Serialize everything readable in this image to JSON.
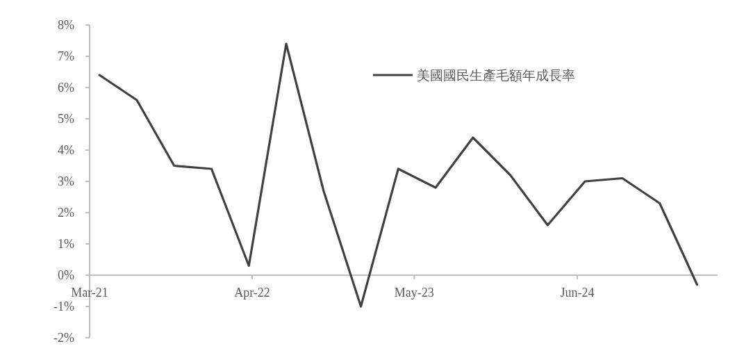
{
  "chart_data": {
    "type": "line",
    "x": [
      "2021-03-25",
      "2021-06-24",
      "2021-09-23",
      "2021-12-23",
      "2022-03-24",
      "2022-06-23",
      "2022-09-22",
      "2022-12-22",
      "2023-03-23",
      "2023-06-22",
      "2023-09-21",
      "2023-12-21",
      "2024-03-21",
      "2024-06-20",
      "2024-09-19",
      "2024-12-19",
      "2025-03-20"
    ],
    "series": [
      {
        "name": "美國國民生產毛額年成長率",
        "color": "#404040",
        "values": [
          6.4,
          5.6,
          3.5,
          3.4,
          0.3,
          7.4,
          2.7,
          -1.0,
          3.4,
          2.8,
          4.4,
          3.2,
          1.6,
          3.0,
          3.1,
          2.3,
          -0.3
        ]
      }
    ],
    "xlim": [
      "2021-03-01",
      "2025-05-09"
    ],
    "xticks": [
      {
        "value": "2021-03-01",
        "label": "Mar-21"
      },
      {
        "value": "2022-04-01",
        "label": "Apr-22"
      },
      {
        "value": "2023-05-01",
        "label": "May-23"
      },
      {
        "value": "2024-06-01",
        "label": "Jun-24"
      }
    ],
    "ylim": [
      -2,
      8
    ],
    "yticks": [
      {
        "value": -2,
        "label": "-2%"
      },
      {
        "value": -1,
        "label": "-1%"
      },
      {
        "value": 0,
        "label": "0%"
      },
      {
        "value": 1,
        "label": "1%"
      },
      {
        "value": 2,
        "label": "2%"
      },
      {
        "value": 3,
        "label": "3%"
      },
      {
        "value": 4,
        "label": "4%"
      },
      {
        "value": 5,
        "label": "5%"
      },
      {
        "value": 6,
        "label": "6%"
      },
      {
        "value": 7,
        "label": "7%"
      },
      {
        "value": 8,
        "label": "8%"
      }
    ],
    "legend": "top right"
  }
}
